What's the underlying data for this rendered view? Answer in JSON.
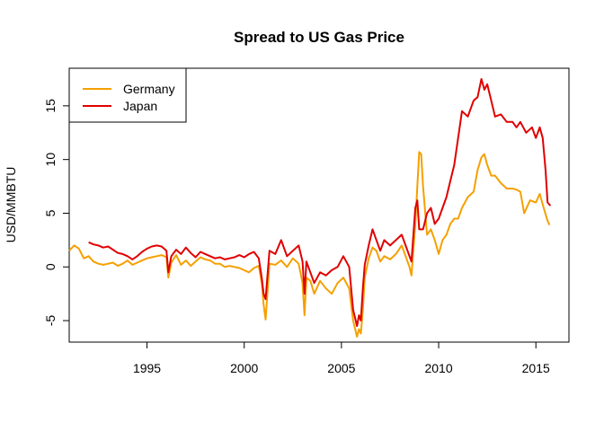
{
  "chart_data": {
    "type": "line",
    "title": "Spread to US Gas Price",
    "xlabel": "",
    "ylabel": "USD/MMBTU",
    "xlim": [
      1991.0,
      2016.7
    ],
    "ylim": [
      -7.0,
      18.5
    ],
    "xticks": [
      1995,
      2000,
      2005,
      2010,
      2015
    ],
    "yticks": [
      -5,
      0,
      5,
      10,
      15
    ],
    "grid": false,
    "legend_position": "top-left",
    "series": [
      {
        "name": "Germany",
        "color": "#f5a000",
        "x": [
          1991.0,
          1991.25,
          1991.5,
          1991.75,
          1992.0,
          1992.25,
          1992.5,
          1992.75,
          1993.0,
          1993.25,
          1993.5,
          1993.75,
          1994.0,
          1994.25,
          1994.5,
          1994.75,
          1995.0,
          1995.25,
          1995.5,
          1995.75,
          1996.0,
          1996.1,
          1996.25,
          1996.5,
          1996.75,
          1997.0,
          1997.25,
          1997.5,
          1997.75,
          1998.0,
          1998.25,
          1998.5,
          1998.75,
          1999.0,
          1999.25,
          1999.5,
          1999.75,
          2000.0,
          2000.25,
          2000.5,
          2000.75,
          2000.9,
          2001.0,
          2001.1,
          2001.3,
          2001.6,
          2001.9,
          2002.2,
          2002.5,
          2002.8,
          2003.0,
          2003.1,
          2003.2,
          2003.4,
          2003.6,
          2003.9,
          2004.2,
          2004.5,
          2004.8,
          2005.1,
          2005.4,
          2005.6,
          2005.8,
          2005.9,
          2006.0,
          2006.1,
          2006.2,
          2006.4,
          2006.6,
          2006.8,
          2007.0,
          2007.2,
          2007.5,
          2007.8,
          2008.1,
          2008.3,
          2008.5,
          2008.6,
          2008.8,
          2008.9,
          2009.0,
          2009.1,
          2009.2,
          2009.4,
          2009.6,
          2009.8,
          2010.0,
          2010.2,
          2010.4,
          2010.6,
          2010.8,
          2011.0,
          2011.2,
          2011.5,
          2011.8,
          2012.0,
          2012.2,
          2012.35,
          2012.5,
          2012.7,
          2012.9,
          2013.2,
          2013.5,
          2013.8,
          2014.0,
          2014.2,
          2014.4,
          2014.7,
          2015.0,
          2015.2,
          2015.4,
          2015.6,
          2015.7
        ],
        "y": [
          1.5,
          2.0,
          1.7,
          0.8,
          1.0,
          0.5,
          0.3,
          0.2,
          0.3,
          0.4,
          0.1,
          0.3,
          0.6,
          0.2,
          0.4,
          0.6,
          0.8,
          0.9,
          1.0,
          1.1,
          0.9,
          -1.0,
          0.4,
          1.1,
          0.2,
          0.6,
          0.1,
          0.5,
          0.9,
          0.7,
          0.6,
          0.3,
          0.3,
          0.0,
          0.1,
          0.0,
          -0.1,
          -0.3,
          -0.5,
          -0.1,
          0.1,
          -1.5,
          -3.5,
          -4.9,
          0.3,
          0.2,
          0.6,
          0.0,
          0.8,
          0.3,
          -1.5,
          -4.5,
          -1.0,
          -1.3,
          -2.5,
          -1.3,
          -2.0,
          -2.5,
          -1.5,
          -1.0,
          -2.0,
          -5.0,
          -6.5,
          -5.8,
          -6.2,
          -4.0,
          -1.0,
          0.8,
          1.8,
          1.5,
          0.5,
          1.0,
          0.7,
          1.2,
          2.0,
          1.0,
          0.0,
          -0.8,
          4.0,
          7.5,
          10.7,
          10.5,
          7.5,
          3.0,
          3.5,
          2.5,
          1.2,
          2.5,
          3.0,
          4.0,
          4.5,
          4.5,
          5.5,
          6.5,
          7.0,
          9.0,
          10.2,
          10.5,
          9.5,
          8.5,
          8.5,
          7.8,
          7.3,
          7.3,
          7.2,
          7.0,
          5.0,
          6.2,
          6.0,
          6.8,
          5.5,
          4.3,
          3.9
        ]
      },
      {
        "name": "Japan",
        "color": "#e00000",
        "x": [
          1992.0,
          1992.25,
          1992.5,
          1992.75,
          1993.0,
          1993.25,
          1993.5,
          1993.75,
          1994.0,
          1994.25,
          1994.5,
          1994.75,
          1995.0,
          1995.25,
          1995.5,
          1995.75,
          1996.0,
          1996.1,
          1996.25,
          1996.5,
          1996.75,
          1997.0,
          1997.25,
          1997.5,
          1997.75,
          1998.0,
          1998.25,
          1998.5,
          1998.75,
          1999.0,
          1999.25,
          1999.5,
          1999.75,
          2000.0,
          2000.25,
          2000.5,
          2000.75,
          2000.9,
          2001.0,
          2001.1,
          2001.3,
          2001.6,
          2001.9,
          2002.2,
          2002.5,
          2002.8,
          2003.0,
          2003.1,
          2003.2,
          2003.4,
          2003.6,
          2003.9,
          2004.2,
          2004.5,
          2004.8,
          2005.1,
          2005.4,
          2005.6,
          2005.8,
          2005.9,
          2006.0,
          2006.1,
          2006.2,
          2006.4,
          2006.6,
          2006.8,
          2007.0,
          2007.2,
          2007.5,
          2007.8,
          2008.1,
          2008.3,
          2008.5,
          2008.6,
          2008.8,
          2008.9,
          2009.0,
          2009.2,
          2009.4,
          2009.6,
          2009.8,
          2010.0,
          2010.2,
          2010.4,
          2010.6,
          2010.8,
          2011.0,
          2011.2,
          2011.5,
          2011.8,
          2012.0,
          2012.2,
          2012.35,
          2012.5,
          2012.7,
          2012.9,
          2013.2,
          2013.5,
          2013.8,
          2014.0,
          2014.2,
          2014.5,
          2014.8,
          2015.0,
          2015.2,
          2015.35,
          2015.5,
          2015.6,
          2015.75
        ],
        "y": [
          2.3,
          2.1,
          2.0,
          1.8,
          1.9,
          1.6,
          1.3,
          1.2,
          1.0,
          0.7,
          1.0,
          1.4,
          1.7,
          1.9,
          2.0,
          1.9,
          1.5,
          -0.5,
          1.0,
          1.6,
          1.2,
          1.8,
          1.3,
          0.9,
          1.4,
          1.2,
          1.0,
          0.8,
          0.9,
          0.7,
          0.8,
          0.9,
          1.1,
          0.9,
          1.2,
          1.4,
          0.8,
          -1.0,
          -2.5,
          -3.0,
          1.5,
          1.2,
          2.5,
          1.0,
          1.5,
          2.0,
          0.5,
          -2.5,
          0.5,
          -0.5,
          -1.5,
          -0.5,
          -0.8,
          -0.3,
          0.0,
          1.0,
          0.0,
          -4.0,
          -5.5,
          -4.5,
          -5.0,
          -2.0,
          0.2,
          2.0,
          3.5,
          2.5,
          1.5,
          2.5,
          2.0,
          2.5,
          3.0,
          2.0,
          1.0,
          0.5,
          5.5,
          6.2,
          3.5,
          3.5,
          5.0,
          5.5,
          4.0,
          4.5,
          5.5,
          6.5,
          8.0,
          9.5,
          12.0,
          14.5,
          14.0,
          15.5,
          15.8,
          17.5,
          16.5,
          17.0,
          15.5,
          14.0,
          14.2,
          13.5,
          13.5,
          13.0,
          13.5,
          12.5,
          13.0,
          12.0,
          13.0,
          12.0,
          9.0,
          6.0,
          5.7
        ]
      }
    ]
  }
}
